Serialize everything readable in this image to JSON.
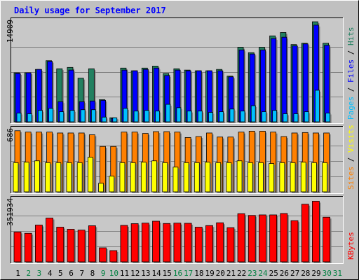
{
  "chart_data": {
    "type": "bar",
    "title": "Daily usage for September 2017",
    "categories": [
      "1",
      "2",
      "3",
      "4",
      "5",
      "6",
      "7",
      "8",
      "9",
      "10",
      "11",
      "12",
      "13",
      "14",
      "15",
      "16",
      "17",
      "18",
      "19",
      "20",
      "21",
      "22",
      "23",
      "24",
      "25",
      "26",
      "27",
      "28",
      "29",
      "30",
      "31"
    ],
    "weekend_days": [
      "2",
      "3",
      "9",
      "10",
      "16",
      "17",
      "23",
      "24",
      "30",
      "31"
    ],
    "colors": {
      "background": "#c0c0c0",
      "plot_background": "#c8c8c8",
      "title": "#0000ff",
      "weekday_label": "#000000",
      "weekend_label": "#008040",
      "hits": "#228060",
      "files": "#0000ff",
      "pages": "#00c0ff",
      "visits": "#ffff00",
      "sites": "#ff8000",
      "kbytes": "#ff0000"
    },
    "panels": [
      {
        "name": "hits_files_pages",
        "max_label": "14909",
        "max": 14909,
        "legend": [
          {
            "text": "Pages",
            "color": "#00c0ff"
          },
          {
            "text": " / ",
            "color": "#000000"
          },
          {
            "text": "Files",
            "color": "#0000ff"
          },
          {
            "text": " / ",
            "color": "#000000"
          },
          {
            "text": "Hits",
            "color": "#228060"
          }
        ],
        "series": [
          {
            "name": "Hits",
            "color": "#228060",
            "values": [
              7300,
              7300,
              7800,
              9100,
              7900,
              8100,
              6500,
              7900,
              3300,
              600,
              8000,
              7600,
              8000,
              8300,
              7200,
              7900,
              7700,
              7600,
              7600,
              7800,
              6800,
              11100,
              10300,
              11100,
              12800,
              13300,
              11500,
              11700,
              14900,
              11700,
              0
            ]
          },
          {
            "name": "Files",
            "color": "#0000ff",
            "values": [
              7200,
              7300,
              7800,
              9000,
              3000,
              7700,
              3000,
              3100,
              3200,
              500,
              7700,
              7600,
              7800,
              8000,
              6900,
              7700,
              7600,
              7600,
              7600,
              7600,
              6700,
              10700,
              10100,
              10700,
              12400,
              12600,
              11300,
              11600,
              14400,
              11400,
              0
            ]
          },
          {
            "name": "Pages",
            "color": "#00c0ff",
            "values": [
              1300,
              1200,
              1700,
              2000,
              1500,
              1700,
              1800,
              1800,
              700,
              600,
              2000,
              1600,
              1700,
              1600,
              2600,
              2100,
              1600,
              1600,
              1400,
              1500,
              1900,
              1600,
              2400,
              1500,
              1700,
              1200,
              1200,
              1500,
              4700,
              1300,
              0
            ]
          }
        ]
      },
      {
        "name": "visits_sites",
        "max_label": "686",
        "max": 686,
        "legend": [
          {
            "text": "Sites",
            "color": "#ff8000"
          },
          {
            "text": " / ",
            "color": "#000000"
          },
          {
            "text": "Visits",
            "color": "#ffff00"
          }
        ],
        "series": [
          {
            "name": "Sites",
            "color": "#ff8000",
            "values": [
              680,
              665,
              665,
              665,
              655,
              655,
              655,
              635,
              505,
              505,
              665,
              665,
              650,
              670,
              670,
              665,
              605,
              615,
              655,
              610,
              610,
              665,
              675,
              675,
              665,
              615,
              655,
              660,
              655,
              655,
              0
            ]
          },
          {
            "name": "Visits",
            "color": "#ffff00",
            "values": [
              325,
              330,
              345,
              325,
              325,
              325,
              325,
              385,
              95,
              175,
              325,
              325,
              330,
              345,
              325,
              275,
              325,
              325,
              330,
              325,
              325,
              345,
              325,
              325,
              315,
              325,
              325,
              330,
              325,
              325,
              0
            ]
          }
        ]
      },
      {
        "name": "kbytes",
        "max_label": "351934",
        "max": 351934,
        "legend": [
          {
            "text": "KBytes",
            "color": "#ff0000"
          }
        ],
        "series": [
          {
            "name": "KBytes",
            "color": "#ff0000",
            "values": [
              170000,
              163000,
              210000,
              250000,
              198000,
              186000,
              181000,
              206000,
              80000,
              64000,
              208000,
              218000,
              221000,
              232000,
              219000,
              221000,
              220000,
              198000,
              207000,
              223000,
              195000,
              275000,
              265000,
              268000,
              268000,
              276000,
              235000,
              329000,
              346000,
              255000,
              0
            ]
          }
        ]
      }
    ]
  }
}
